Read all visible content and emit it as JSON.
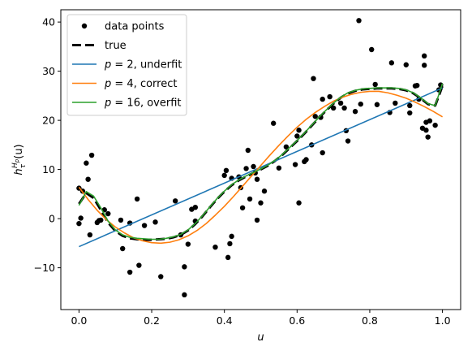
{
  "chart_data": {
    "type": "scatter",
    "xlabel": "u",
    "ylabel": "h_τ^{H_p}(u)",
    "xlim": [
      -0.05,
      1.05
    ],
    "ylim": [
      -18.5,
      42.5
    ],
    "xticks": [
      0.0,
      0.2,
      0.4,
      0.6,
      0.8,
      1.0
    ],
    "xtick_labels": [
      "0.0",
      "0.2",
      "0.4",
      "0.6",
      "0.8",
      "1.0"
    ],
    "yticks": [
      -10,
      0,
      10,
      20,
      30,
      40
    ],
    "ytick_labels": [
      "−10",
      "0",
      "10",
      "20",
      "30",
      "40"
    ],
    "grid": false,
    "legend_position": "upper-left",
    "legend": [
      {
        "label": "data points",
        "style": "marker",
        "color": "#000000"
      },
      {
        "label": "true",
        "style": "dashed",
        "color": "#000000"
      },
      {
        "label": "p = 2, underfit",
        "style": "line",
        "color": "#1f77b4"
      },
      {
        "label": "p = 4, correct",
        "style": "line",
        "color": "#ff7f0e"
      },
      {
        "label": "p = 16, overfit",
        "style": "line",
        "color": "#2ca02c"
      }
    ],
    "scatter_points": [
      [
        0.0,
        6.2
      ],
      [
        0.0,
        -1.0
      ],
      [
        0.005,
        0.1
      ],
      [
        0.01,
        5.6
      ],
      [
        0.02,
        11.3
      ],
      [
        0.025,
        8.0
      ],
      [
        0.03,
        -3.3
      ],
      [
        0.035,
        12.9
      ],
      [
        0.05,
        -0.8
      ],
      [
        0.055,
        -0.4
      ],
      [
        0.06,
        -0.3
      ],
      [
        0.07,
        1.8
      ],
      [
        0.08,
        1.0
      ],
      [
        0.115,
        -0.3
      ],
      [
        0.12,
        -6.1
      ],
      [
        0.14,
        -0.9
      ],
      [
        0.14,
        -10.9
      ],
      [
        0.16,
        4.0
      ],
      [
        0.165,
        -9.5
      ],
      [
        0.18,
        -1.4
      ],
      [
        0.21,
        -0.7
      ],
      [
        0.225,
        -11.8
      ],
      [
        0.265,
        3.6
      ],
      [
        0.28,
        -3.3
      ],
      [
        0.29,
        -9.8
      ],
      [
        0.29,
        -15.5
      ],
      [
        0.3,
        -5.2
      ],
      [
        0.31,
        1.9
      ],
      [
        0.32,
        -0.5
      ],
      [
        0.32,
        2.3
      ],
      [
        0.375,
        -5.8
      ],
      [
        0.4,
        8.8
      ],
      [
        0.405,
        9.8
      ],
      [
        0.41,
        -7.9
      ],
      [
        0.415,
        -5.1
      ],
      [
        0.42,
        -3.6
      ],
      [
        0.42,
        8.2
      ],
      [
        0.44,
        8.5
      ],
      [
        0.445,
        6.3
      ],
      [
        0.45,
        2.2
      ],
      [
        0.46,
        10.2
      ],
      [
        0.465,
        13.9
      ],
      [
        0.47,
        4.0
      ],
      [
        0.48,
        10.6
      ],
      [
        0.485,
        9.3
      ],
      [
        0.49,
        8.0
      ],
      [
        0.49,
        -0.3
      ],
      [
        0.5,
        3.2
      ],
      [
        0.51,
        5.6
      ],
      [
        0.535,
        19.4
      ],
      [
        0.55,
        10.3
      ],
      [
        0.57,
        14.6
      ],
      [
        0.595,
        11.0
      ],
      [
        0.6,
        16.8
      ],
      [
        0.605,
        18.0
      ],
      [
        0.605,
        3.2
      ],
      [
        0.62,
        11.6
      ],
      [
        0.625,
        12.0
      ],
      [
        0.64,
        15.0
      ],
      [
        0.645,
        28.5
      ],
      [
        0.65,
        20.8
      ],
      [
        0.665,
        20.6
      ],
      [
        0.67,
        24.3
      ],
      [
        0.67,
        13.4
      ],
      [
        0.69,
        24.8
      ],
      [
        0.7,
        22.5
      ],
      [
        0.72,
        23.5
      ],
      [
        0.73,
        22.5
      ],
      [
        0.735,
        17.9
      ],
      [
        0.74,
        15.8
      ],
      [
        0.76,
        21.8
      ],
      [
        0.77,
        40.3
      ],
      [
        0.775,
        23.3
      ],
      [
        0.805,
        34.4
      ],
      [
        0.815,
        27.3
      ],
      [
        0.82,
        23.2
      ],
      [
        0.855,
        21.6
      ],
      [
        0.86,
        31.7
      ],
      [
        0.87,
        23.5
      ],
      [
        0.9,
        31.3
      ],
      [
        0.91,
        23.0
      ],
      [
        0.91,
        21.5
      ],
      [
        0.925,
        27.0
      ],
      [
        0.93,
        27.1
      ],
      [
        0.935,
        24.3
      ],
      [
        0.945,
        18.4
      ],
      [
        0.95,
        33.1
      ],
      [
        0.95,
        31.2
      ],
      [
        0.955,
        19.6
      ],
      [
        0.955,
        18.0
      ],
      [
        0.96,
        16.6
      ],
      [
        0.965,
        19.9
      ],
      [
        0.98,
        19.0
      ],
      [
        0.99,
        26.2
      ],
      [
        0.995,
        27.2
      ]
    ],
    "series": [
      {
        "name": "true",
        "style": "dashed",
        "color": "#000000",
        "x": [
          0.0,
          0.02,
          0.04,
          0.06,
          0.08,
          0.1,
          0.12,
          0.14,
          0.16,
          0.18,
          0.2,
          0.22,
          0.24,
          0.26,
          0.28,
          0.3,
          0.32,
          0.34,
          0.36,
          0.38,
          0.4,
          0.42,
          0.44,
          0.46,
          0.48,
          0.5,
          0.52,
          0.54,
          0.56,
          0.58,
          0.6,
          0.62,
          0.64,
          0.66,
          0.68,
          0.7,
          0.72,
          0.74,
          0.76,
          0.78,
          0.8,
          0.82,
          0.84,
          0.86,
          0.88,
          0.9,
          0.92,
          0.94,
          0.96,
          0.98,
          1.0
        ],
        "y": [
          3.0,
          5.2,
          4.2,
          1.8,
          -0.8,
          -2.5,
          -3.5,
          -4.0,
          -4.2,
          -4.3,
          -4.3,
          -4.2,
          -4.1,
          -3.8,
          -3.3,
          -2.4,
          -1.1,
          0.5,
          2.3,
          4.0,
          5.5,
          6.8,
          7.8,
          8.6,
          9.3,
          10.0,
          10.8,
          11.8,
          13.0,
          14.4,
          15.8,
          17.3,
          18.9,
          20.5,
          22.0,
          23.4,
          24.6,
          25.5,
          26.0,
          26.3,
          26.4,
          26.5,
          26.5,
          26.5,
          26.4,
          26.1,
          25.5,
          24.5,
          23.3,
          23.0,
          27.0
        ]
      },
      {
        "name": "p = 2, underfit",
        "style": "line",
        "color": "#1f77b4",
        "x": [
          0.0,
          1.0
        ],
        "y": [
          -5.7,
          26.6
        ]
      },
      {
        "name": "p = 4, correct",
        "style": "line",
        "color": "#ff7f0e",
        "x": [
          0.0,
          0.025,
          0.05,
          0.075,
          0.1,
          0.125,
          0.15,
          0.175,
          0.2,
          0.225,
          0.25,
          0.275,
          0.3,
          0.325,
          0.35,
          0.375,
          0.4,
          0.425,
          0.45,
          0.475,
          0.5,
          0.525,
          0.55,
          0.575,
          0.6,
          0.625,
          0.65,
          0.675,
          0.7,
          0.725,
          0.75,
          0.775,
          0.8,
          0.825,
          0.85,
          0.875,
          0.9,
          0.925,
          0.95,
          0.975,
          1.0
        ],
        "y": [
          6.4,
          3.9,
          1.7,
          -0.2,
          -1.7,
          -2.9,
          -3.9,
          -4.5,
          -4.9,
          -5.0,
          -4.8,
          -4.3,
          -3.5,
          -2.4,
          -1.0,
          0.7,
          2.5,
          4.5,
          6.6,
          8.7,
          10.8,
          12.9,
          14.9,
          16.8,
          18.6,
          20.2,
          21.6,
          22.8,
          23.9,
          24.7,
          25.3,
          25.7,
          25.9,
          25.9,
          25.6,
          25.1,
          24.5,
          23.7,
          22.8,
          21.8,
          20.7
        ]
      },
      {
        "name": "p = 16, overfit",
        "style": "line",
        "color": "#2ca02c",
        "x": [
          0.0,
          0.02,
          0.04,
          0.06,
          0.08,
          0.1,
          0.12,
          0.14,
          0.16,
          0.18,
          0.2,
          0.22,
          0.24,
          0.26,
          0.28,
          0.3,
          0.32,
          0.34,
          0.36,
          0.38,
          0.4,
          0.42,
          0.44,
          0.46,
          0.48,
          0.5,
          0.52,
          0.54,
          0.56,
          0.58,
          0.6,
          0.62,
          0.64,
          0.66,
          0.68,
          0.7,
          0.72,
          0.74,
          0.76,
          0.78,
          0.8,
          0.82,
          0.84,
          0.86,
          0.88,
          0.9,
          0.92,
          0.94,
          0.96,
          0.98,
          1.0
        ],
        "y": [
          2.7,
          5.5,
          4.6,
          2.2,
          -0.5,
          -2.3,
          -3.3,
          -3.8,
          -4.0,
          -4.1,
          -4.2,
          -4.2,
          -4.0,
          -3.7,
          -3.2,
          -2.3,
          -1.0,
          0.6,
          2.4,
          4.1,
          5.6,
          6.9,
          7.9,
          8.7,
          9.4,
          10.1,
          10.9,
          11.9,
          13.1,
          14.5,
          15.9,
          17.4,
          19.0,
          20.6,
          22.1,
          23.5,
          24.7,
          25.6,
          26.1,
          26.4,
          26.5,
          26.6,
          26.6,
          26.6,
          26.5,
          26.2,
          25.6,
          24.6,
          23.4,
          23.0,
          27.5
        ]
      }
    ]
  }
}
